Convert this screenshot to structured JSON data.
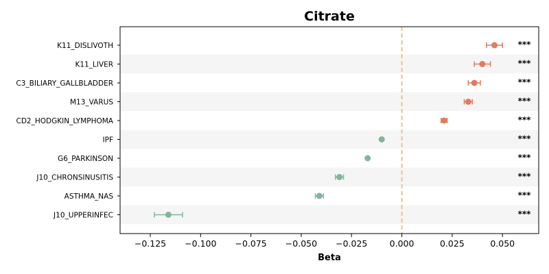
{
  "chart_data": {
    "type": "scatter",
    "title": "Citrate",
    "xlabel": "Beta",
    "ylabel": "",
    "xlim": [
      -0.14,
      0.068
    ],
    "xticks": [
      -0.125,
      -0.1,
      -0.075,
      -0.05,
      -0.025,
      0.0,
      0.025,
      0.05
    ],
    "xtick_labels": [
      "−0.125",
      "−0.100",
      "−0.075",
      "−0.050",
      "−0.025",
      "0.000",
      "0.025",
      "0.050"
    ],
    "reference_line": {
      "x": 0.0,
      "style": "dashed",
      "color": "#f0c27f"
    },
    "grid": false,
    "row_stripes": true,
    "colors": {
      "positive": "#e07b5f",
      "negative": "#82b59a",
      "stripe": "#f5f5f5"
    },
    "points": [
      {
        "label": "K11_DISLIVOTH",
        "beta": 0.046,
        "ci_low": 0.042,
        "ci_high": 0.05,
        "significance": "***"
      },
      {
        "label": "K11_LIVER",
        "beta": 0.04,
        "ci_low": 0.036,
        "ci_high": 0.044,
        "significance": "***"
      },
      {
        "label": "C3_BILIARY_GALLBLADDER",
        "beta": 0.036,
        "ci_low": 0.033,
        "ci_high": 0.039,
        "significance": "***"
      },
      {
        "label": "M13_VARUS",
        "beta": 0.033,
        "ci_low": 0.031,
        "ci_high": 0.035,
        "significance": "***"
      },
      {
        "label": "CD2_HODGKIN_LYMPHOMA",
        "beta": 0.021,
        "ci_low": 0.0195,
        "ci_high": 0.0225,
        "significance": "***"
      },
      {
        "label": "IPF",
        "beta": -0.01,
        "ci_low": -0.0105,
        "ci_high": -0.0095,
        "significance": "***"
      },
      {
        "label": "G6_PARKINSON",
        "beta": -0.017,
        "ci_low": -0.0175,
        "ci_high": -0.0165,
        "significance": "***"
      },
      {
        "label": "J10_CHRONSINUSITIS",
        "beta": -0.031,
        "ci_low": -0.033,
        "ci_high": -0.029,
        "significance": "***"
      },
      {
        "label": "ASTHMA_NAS",
        "beta": -0.041,
        "ci_low": -0.043,
        "ci_high": -0.039,
        "significance": "***"
      },
      {
        "label": "J10_UPPERINFEC",
        "beta": -0.116,
        "ci_low": -0.123,
        "ci_high": -0.109,
        "significance": "***"
      }
    ]
  }
}
